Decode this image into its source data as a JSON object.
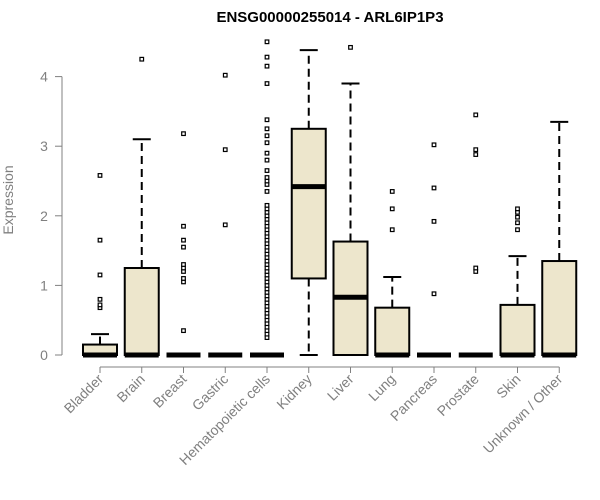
{
  "chart_data": {
    "type": "boxplot",
    "title": "ENSG00000255014 - ARL6IP1P3",
    "xlabel": "",
    "ylabel": "Expression",
    "ylim": [
      0,
      4.5
    ],
    "yticks": [
      0,
      1,
      2,
      3,
      4
    ],
    "grid": false,
    "box_fill": "#ede6cc",
    "categories": [
      "Bladder",
      "Brain",
      "Breast",
      "Gastric",
      "Hematopoietic cells",
      "Kidney",
      "Liver",
      "Lung",
      "Pancreas",
      "Prostate",
      "Skin",
      "Unknown / Other"
    ],
    "boxes": [
      {
        "q1": 0,
        "median": 0,
        "q3": 0.15,
        "whisker_low": 0,
        "whisker_high": 0.3,
        "outliers": [
          0.68,
          0.72,
          0.8,
          1.15,
          1.65,
          2.58
        ]
      },
      {
        "q1": 0,
        "median": 0,
        "q3": 1.25,
        "whisker_low": 0,
        "whisker_high": 3.1,
        "outliers": [
          4.25
        ]
      },
      {
        "q1": 0,
        "median": 0,
        "q3": 0,
        "whisker_low": 0,
        "whisker_high": 0,
        "outliers": [
          0.35,
          1.05,
          1.1,
          1.2,
          1.25,
          1.3,
          1.55,
          1.65,
          1.85,
          3.18
        ]
      },
      {
        "q1": 0,
        "median": 0,
        "q3": 0,
        "whisker_low": 0,
        "whisker_high": 0,
        "outliers": [
          1.87,
          2.95,
          4.02
        ]
      },
      {
        "q1": 0,
        "median": 0,
        "q3": 0,
        "whisker_low": 0,
        "whisker_high": 0,
        "outliers": [
          0.25,
          0.3,
          0.35,
          0.4,
          0.45,
          0.5,
          0.55,
          0.6,
          0.65,
          0.7,
          0.75,
          0.8,
          0.85,
          0.9,
          0.95,
          1.0,
          1.05,
          1.1,
          1.15,
          1.2,
          1.25,
          1.3,
          1.35,
          1.4,
          1.45,
          1.5,
          1.55,
          1.6,
          1.65,
          1.7,
          1.75,
          1.8,
          1.85,
          1.9,
          1.95,
          2.0,
          2.05,
          2.1,
          2.15,
          2.35,
          2.45,
          2.5,
          2.55,
          2.65,
          2.8,
          2.9,
          3.05,
          3.15,
          3.25,
          3.38,
          3.9,
          4.15,
          4.28,
          4.5
        ]
      },
      {
        "q1": 1.1,
        "median": 2.42,
        "q3": 3.25,
        "whisker_low": 0,
        "whisker_high": 4.38,
        "outliers": []
      },
      {
        "q1": 0,
        "median": 0.83,
        "q3": 1.63,
        "whisker_low": 0,
        "whisker_high": 3.9,
        "outliers": [
          4.42
        ]
      },
      {
        "q1": 0,
        "median": 0,
        "q3": 0.68,
        "whisker_low": 0,
        "whisker_high": 1.12,
        "outliers": [
          1.8,
          2.1,
          2.35
        ]
      },
      {
        "q1": 0,
        "median": 0,
        "q3": 0,
        "whisker_low": 0,
        "whisker_high": 0,
        "outliers": [
          0.88,
          1.92,
          2.4,
          3.02
        ]
      },
      {
        "q1": 0,
        "median": 0,
        "q3": 0,
        "whisker_low": 0,
        "whisker_high": 0,
        "outliers": [
          1.2,
          1.25,
          2.88,
          2.95,
          3.45
        ]
      },
      {
        "q1": 0,
        "median": 0,
        "q3": 0.72,
        "whisker_low": 0,
        "whisker_high": 1.42,
        "outliers": [
          1.8,
          1.9,
          1.98,
          2.05,
          2.1
        ]
      },
      {
        "q1": 0,
        "median": 0,
        "q3": 1.35,
        "whisker_low": 0,
        "whisker_high": 3.35,
        "outliers": []
      }
    ]
  }
}
